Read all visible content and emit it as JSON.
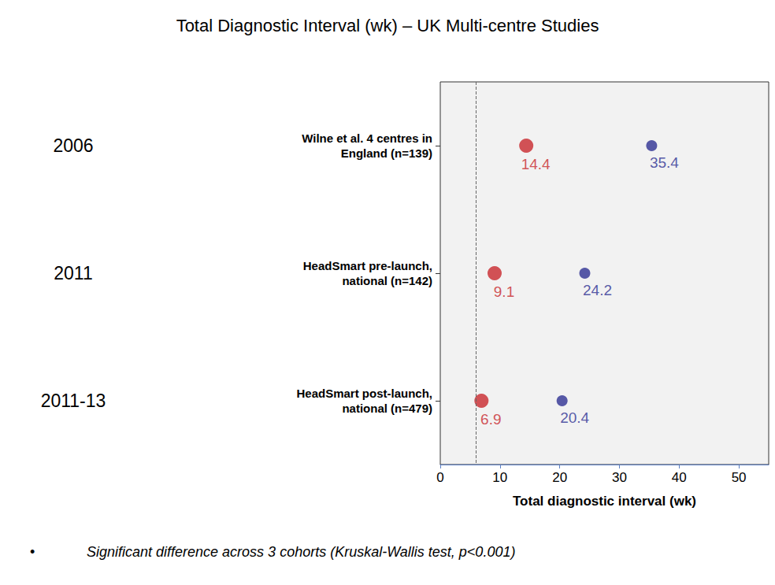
{
  "chart_data": {
    "type": "scatter",
    "title": "Total Diagnostic Interval (wk) – UK Multi-centre Studies",
    "x_label": "Total diagnostic interval (wk)",
    "categories": [
      "Wilne et al. 4 centres in\nEngland (n=139)",
      "HeadSmart pre-launch,\nnational (n=142)",
      "HeadSmart post-launch,\nnational (n=479)"
    ],
    "year_labels": [
      "2006",
      "2011",
      "2011-13"
    ],
    "series": [
      {
        "color": "#c8282d",
        "values": [
          14.4,
          9.1,
          6.9
        ]
      },
      {
        "color": "#2e3192",
        "values": [
          35.4,
          24.2,
          20.4
        ]
      }
    ],
    "reference_x": 6,
    "xlim": [
      0,
      55
    ],
    "xticks": [
      0,
      10,
      20,
      30,
      40,
      50
    ],
    "grid": false,
    "data_labels": true,
    "bullet": "•",
    "footnote": "Significant difference across 3 cohorts (Kruskal-Wallis test, p<0.001)"
  }
}
